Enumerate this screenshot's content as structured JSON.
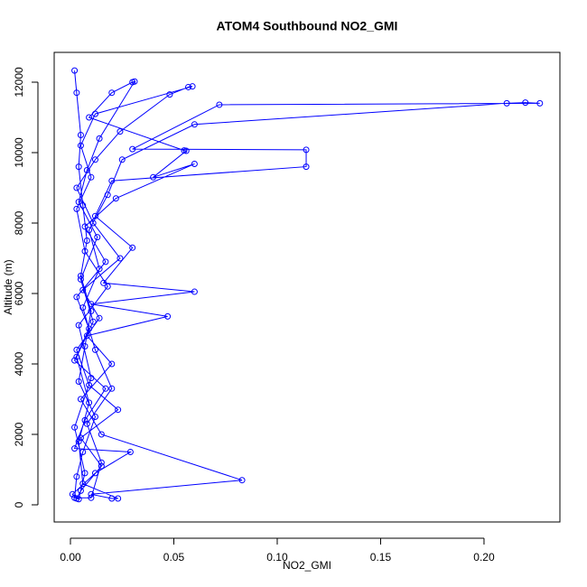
{
  "chart_data": {
    "type": "line",
    "title": "ATOM4 Southbound NO2_GMI",
    "x_label": "NO2_GMI",
    "y_label": "Altitude (m)",
    "color": "#0000ff",
    "marker": "circle",
    "x": [
      0.002,
      0.003,
      0.005,
      0.004,
      0.006,
      0.008,
      0.005,
      0.01,
      0.007,
      0.004,
      0.012,
      0.006,
      0.003,
      0.002,
      0.01,
      0.015,
      0.008,
      0.02,
      0.012,
      0.006,
      0.014,
      0.009,
      0.018,
      0.025,
      0.06,
      0.211,
      0.22,
      0.227,
      0.072,
      0.03,
      0.114,
      0.114,
      0.02,
      0.012,
      0.03,
      0.016,
      0.06,
      0.01,
      0.047,
      0.008,
      0.02,
      0.005,
      0.015,
      0.083,
      0.01,
      0.02,
      0.023,
      0.006,
      0.004,
      0.009,
      0.003,
      0.011,
      0.005,
      0.013,
      0.004,
      0.008,
      0.014,
      0.031,
      0.03,
      0.02,
      0.009,
      0.055,
      0.056,
      0.04,
      0.06,
      0.022,
      0.007,
      0.017,
      0.003,
      0.009,
      0.002,
      0.017,
      0.007,
      0.002,
      0.029,
      0.012,
      0.001,
      0.004,
      0.007,
      0.002,
      0.01,
      0.004,
      0.018,
      0.007,
      0.003,
      0.01,
      0.005,
      0.012,
      0.059,
      0.057,
      0.048,
      0.024,
      0.012,
      0.003,
      0.011,
      0.024,
      0.006,
      0.014,
      0.003,
      0.009,
      0.023,
      0.005,
      0.015,
      0.005,
      0.003
    ],
    "values": [
      12330,
      11700,
      10500,
      9600,
      8500,
      7500,
      6500,
      5500,
      4500,
      3500,
      2500,
      1500,
      800,
      200,
      200,
      1200,
      2300,
      3300,
      4400,
      5600,
      6700,
      7800,
      8800,
      9800,
      10800,
      11400,
      11420,
      11400,
      11360,
      10100,
      10080,
      9600,
      9200,
      8200,
      7300,
      6300,
      6050,
      5700,
      5350,
      4800,
      4000,
      3000,
      2000,
      700,
      300,
      180,
      180,
      600,
      1800,
      2900,
      4200,
      5200,
      6400,
      7600,
      8600,
      9500,
      10400,
      12020,
      12000,
      11700,
      11000,
      10060,
      10050,
      9300,
      9680,
      8700,
      7900,
      6900,
      5900,
      5000,
      4100,
      3300,
      2400,
      1600,
      1500,
      900,
      300,
      160,
      900,
      2200,
      3600,
      5100,
      6200,
      7200,
      8400,
      9300,
      10200,
      11100,
      11880,
      11860,
      11650,
      10600,
      9800,
      9000,
      8000,
      7000,
      6100,
      5300,
      4400,
      3400,
      2700,
      1900,
      1100,
      400,
      180
    ],
    "xlim": [
      -0.00786,
      0.2367
    ],
    "ylim": [
      -487,
      12846
    ],
    "xticks": [
      {
        "value": 0,
        "label": "0.00"
      },
      {
        "value": 0.05,
        "label": "0.05"
      },
      {
        "value": 0.1,
        "label": "0.10"
      },
      {
        "value": 0.15,
        "label": "0.15"
      },
      {
        "value": 0.2,
        "label": "0.20"
      }
    ],
    "yticks": [
      0,
      2000,
      4000,
      6000,
      8000,
      10000,
      12000
    ]
  }
}
